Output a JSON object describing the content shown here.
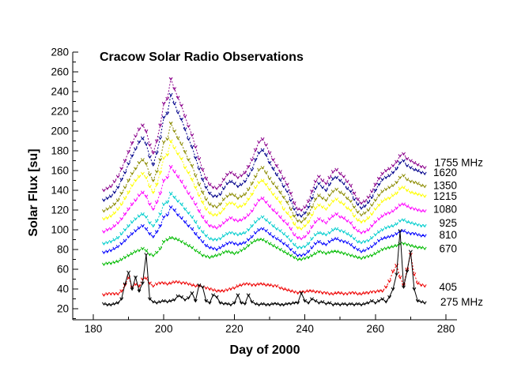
{
  "chart_data": {
    "type": "line",
    "title": "Cracow Solar Radio Observations",
    "xlabel": "Day of 2000",
    "ylabel": "Solar Flux [su]",
    "xlim": [
      174,
      283
    ],
    "ylim": [
      9,
      280
    ],
    "grid": false,
    "background": "#FFFFFF",
    "axis_color": "#000000",
    "legend_position": "right-outside",
    "x_ticks_major": [
      180,
      200,
      220,
      240,
      260,
      280
    ],
    "x_ticks_minor": [
      190,
      210,
      230,
      250,
      270
    ],
    "y_ticks_major": [
      20,
      40,
      60,
      80,
      100,
      120,
      140,
      160,
      180,
      200,
      220,
      240,
      260,
      280
    ],
    "y_ticks_minor": [
      10,
      30,
      50,
      70,
      90,
      110,
      130,
      150,
      170,
      190,
      210,
      230,
      250,
      270
    ],
    "x_start_day": 183,
    "x_step": 1,
    "series": [
      {
        "name": "1755 MHz",
        "legend_label": "1755 MHz",
        "label_level_su": 168,
        "color": "#8B008B",
        "line_style": "dotted",
        "marker": "small-v",
        "values": [
          140,
          142,
          144,
          149,
          154,
          162,
          170,
          179,
          188,
          195,
          202,
          206,
          200,
          186,
          178,
          190,
          206,
          228,
          233,
          253,
          243,
          234,
          226,
          215,
          205,
          196,
          184,
          172,
          161,
          152,
          146,
          143,
          142,
          145,
          151,
          156,
          158,
          156,
          153,
          155,
          158,
          164,
          171,
          181,
          189,
          192,
          186,
          178,
          171,
          165,
          159,
          152,
          146,
          137,
          127,
          121,
          120,
          123,
          129,
          139,
          149,
          154,
          150,
          147,
          153,
          159,
          161,
          157,
          154,
          149,
          145,
          137,
          131,
          127,
          129,
          133,
          139,
          146,
          152,
          157,
          160,
          162,
          165,
          169,
          175,
          177,
          172,
          170,
          168,
          166,
          164,
          163
        ]
      },
      {
        "name": "1620 MHz",
        "legend_label": "1620",
        "label_level_su": 158,
        "color": "#00008B",
        "line_style": "dotted",
        "marker": "small-v",
        "values": [
          130,
          132,
          134,
          138,
          143,
          151,
          158,
          167,
          175,
          182,
          189,
          193,
          187,
          174,
          166,
          178,
          193,
          214,
          218,
          237,
          228,
          219,
          212,
          202,
          192,
          184,
          173,
          162,
          151,
          143,
          137,
          134,
          134,
          136,
          142,
          147,
          149,
          147,
          144,
          146,
          149,
          155,
          161,
          171,
          178,
          181,
          176,
          168,
          162,
          156,
          151,
          144,
          139,
          130,
          121,
          115,
          114,
          117,
          123,
          132,
          142,
          147,
          143,
          140,
          146,
          152,
          153,
          150,
          147,
          142,
          139,
          131,
          126,
          122,
          124,
          128,
          133,
          140,
          146,
          151,
          153,
          155,
          158,
          162,
          168,
          170,
          165,
          163,
          161,
          160,
          158,
          157
        ]
      },
      {
        "name": "1350 MHz",
        "legend_label": "1350",
        "label_level_su": 145,
        "color": "#8B8B00",
        "line_style": "dotted",
        "marker": "small-v",
        "values": [
          119,
          121,
          123,
          126,
          130,
          137,
          143,
          150,
          157,
          162,
          168,
          171,
          167,
          156,
          150,
          159,
          171,
          189,
          192,
          208,
          200,
          193,
          187,
          179,
          171,
          165,
          155,
          146,
          138,
          131,
          126,
          124,
          123,
          126,
          131,
          134,
          136,
          135,
          132,
          134,
          136,
          141,
          147,
          154,
          161,
          163,
          158,
          152,
          147,
          143,
          138,
          133,
          128,
          121,
          114,
          109,
          108,
          111,
          116,
          123,
          131,
          135,
          132,
          130,
          135,
          139,
          141,
          138,
          136,
          132,
          129,
          123,
          118,
          115,
          117,
          120,
          125,
          130,
          135,
          139,
          141,
          143,
          145,
          148,
          153,
          155,
          151,
          149,
          148,
          147,
          145,
          144
        ]
      },
      {
        "name": "1215 MHz",
        "legend_label": "1215",
        "label_level_su": 134,
        "color": "#FFFF00",
        "line_style": "dotted",
        "marker": "small-v",
        "values": [
          111,
          112,
          114,
          117,
          121,
          126,
          132,
          138,
          145,
          150,
          154,
          157,
          153,
          144,
          138,
          146,
          158,
          173,
          176,
          190,
          183,
          177,
          172,
          163,
          158,
          151,
          143,
          135,
          128,
          121,
          117,
          115,
          115,
          117,
          121,
          126,
          127,
          126,
          123,
          124,
          126,
          131,
          136,
          143,
          148,
          150,
          146,
          141,
          136,
          132,
          128,
          121,
          117,
          113,
          106,
          102,
          101,
          104,
          108,
          115,
          122,
          125,
          123,
          121,
          125,
          129,
          131,
          128,
          126,
          122,
          120,
          114,
          110,
          108,
          109,
          112,
          116,
          121,
          125,
          129,
          131,
          132,
          135,
          137,
          142,
          143,
          140,
          138,
          137,
          136,
          135,
          134
        ]
      },
      {
        "name": "1080 MHz",
        "legend_label": "1080",
        "label_level_su": 121,
        "color": "#FF00FF",
        "line_style": "dotted",
        "marker": "small-v",
        "values": [
          98,
          100,
          101,
          104,
          107,
          111,
          116,
          121,
          126,
          130,
          135,
          138,
          134,
          126,
          121,
          128,
          137,
          150,
          153,
          164,
          159,
          154,
          149,
          143,
          137,
          132,
          126,
          119,
          113,
          108,
          104,
          103,
          102,
          104,
          107,
          110,
          112,
          110,
          109,
          110,
          112,
          115,
          119,
          125,
          130,
          132,
          128,
          124,
          120,
          117,
          113,
          109,
          106,
          101,
          95,
          92,
          91,
          93,
          97,
          103,
          108,
          111,
          109,
          107,
          111,
          114,
          116,
          113,
          112,
          109,
          107,
          102,
          99,
          97,
          98,
          100,
          104,
          108,
          111,
          114,
          116,
          117,
          119,
          122,
          125,
          126,
          124,
          122,
          121,
          120,
          119,
          119
        ]
      },
      {
        "name": "925 MHz",
        "legend_label": "925",
        "label_level_su": 107,
        "color": "#00CDCD",
        "line_style": "dotted",
        "marker": "small-v",
        "values": [
          86,
          87,
          88,
          90,
          92,
          96,
          100,
          104,
          108,
          111,
          114,
          116,
          113,
          107,
          104,
          109,
          116,
          126,
          128,
          137,
          133,
          129,
          126,
          121,
          117,
          113,
          108,
          102,
          98,
          94,
          91,
          90,
          90,
          91,
          94,
          96,
          97,
          96,
          95,
          96,
          97,
          100,
          104,
          108,
          111,
          113,
          110,
          107,
          104,
          101,
          99,
          96,
          93,
          89,
          85,
          82,
          82,
          83,
          86,
          91,
          95,
          97,
          96,
          95,
          97,
          100,
          101,
          99,
          98,
          96,
          94,
          91,
          88,
          87,
          88,
          89,
          92,
          95,
          98,
          100,
          102,
          103,
          104,
          106,
          109,
          110,
          108,
          107,
          106,
          105,
          104,
          104
        ]
      },
      {
        "name": "810 MHz",
        "legend_label": "810",
        "label_level_su": 95,
        "color": "#0000FF",
        "line_style": "dotted",
        "marker": "small-v",
        "values": [
          77,
          78,
          79,
          81,
          83,
          86,
          89,
          93,
          96,
          99,
          102,
          104,
          101,
          96,
          93,
          98,
          104,
          113,
          115,
          123,
          120,
          115,
          112,
          108,
          104,
          101,
          96,
          92,
          88,
          84,
          82,
          81,
          80,
          82,
          84,
          86,
          87,
          86,
          85,
          86,
          87,
          90,
          93,
          97,
          100,
          101,
          99,
          96,
          93,
          91,
          89,
          86,
          84,
          80,
          77,
          74,
          74,
          75,
          78,
          82,
          86,
          88,
          86,
          85,
          88,
          90,
          91,
          89,
          88,
          87,
          85,
          82,
          80,
          78,
          79,
          81,
          83,
          86,
          89,
          91,
          92,
          93,
          94,
          96,
          98,
          99,
          97,
          96,
          96,
          95,
          94,
          94
        ]
      },
      {
        "name": "670 MHz",
        "legend_label": "670",
        "label_level_su": 81,
        "color": "#00BB00",
        "line_style": "dotted",
        "marker": "small-v",
        "values": [
          65,
          66,
          66,
          67,
          68,
          70,
          72,
          74,
          76,
          78,
          79,
          81,
          79,
          75,
          74,
          77,
          81,
          88,
          90,
          92,
          91,
          90,
          88,
          86,
          84,
          82,
          79,
          77,
          74,
          73,
          72,
          73,
          74,
          75,
          77,
          78,
          77,
          76,
          77,
          79,
          81,
          84,
          87,
          89,
          90,
          90,
          88,
          86,
          84,
          82,
          80,
          78,
          76,
          74,
          72,
          70,
          70,
          71,
          72,
          74,
          76,
          78,
          77,
          76,
          77,
          78,
          78,
          77,
          76,
          75,
          74,
          73,
          72,
          71,
          72,
          73,
          74,
          76,
          78,
          80,
          81,
          82,
          83,
          84,
          86,
          86,
          85,
          84,
          83,
          82,
          82,
          81
        ]
      },
      {
        "name": "405 MHz",
        "legend_label": "405",
        "label_level_su": 42,
        "color": "#EE0000",
        "line_style": "dotted",
        "marker": "small-v",
        "values": [
          34,
          35,
          35,
          35,
          35,
          38,
          44,
          52,
          42,
          45,
          43,
          50,
          51,
          46,
          43,
          45,
          46,
          46,
          45,
          46,
          47,
          47,
          46,
          46,
          45,
          44,
          43,
          43,
          42,
          41,
          40,
          39,
          38,
          38,
          38,
          39,
          40,
          41,
          43,
          44,
          45,
          45,
          44,
          44,
          45,
          45,
          44,
          44,
          43,
          43,
          41,
          40,
          39,
          38,
          37,
          36,
          37,
          37,
          38,
          38,
          37,
          37,
          36,
          36,
          35,
          35,
          36,
          36,
          35,
          35,
          36,
          36,
          35,
          35,
          36,
          36,
          37,
          37,
          38,
          38,
          42,
          48,
          58,
          64,
          52,
          44,
          60,
          75,
          55,
          46,
          44,
          43
        ]
      },
      {
        "name": "275 MHz",
        "legend_label": "275 MHz",
        "label_level_su": 27,
        "color": "#000000",
        "line_style": "solid",
        "marker": "small-v",
        "values": [
          25,
          24,
          24,
          25,
          26,
          30,
          45,
          57,
          40,
          52,
          38,
          46,
          75,
          30,
          27,
          26,
          27,
          28,
          27,
          28,
          29,
          33,
          32,
          29,
          31,
          36,
          28,
          44,
          42,
          28,
          26,
          34,
          32,
          26,
          25,
          25,
          24,
          26,
          34,
          26,
          25,
          34,
          27,
          25,
          24,
          25,
          24,
          24,
          25,
          25,
          24,
          24,
          25,
          25,
          26,
          26,
          36,
          28,
          26,
          30,
          28,
          26,
          27,
          25,
          26,
          24,
          25,
          24,
          25,
          24,
          25,
          24,
          25,
          24,
          25,
          26,
          28,
          26,
          28,
          30,
          27,
          32,
          40,
          55,
          99,
          42,
          58,
          78,
          40,
          28,
          27,
          26
        ]
      }
    ]
  }
}
